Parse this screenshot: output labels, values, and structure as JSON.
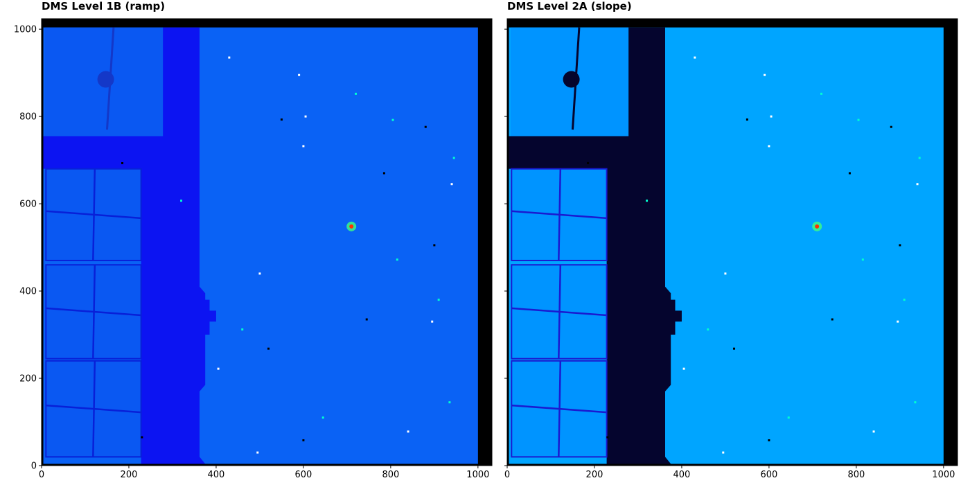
{
  "chart_data": [
    {
      "type": "heatmap",
      "title": "DMS Level 1B (ramp)",
      "xlim": [
        0,
        1032
      ],
      "ylim": [
        0,
        1024
      ],
      "xticks": [
        "0",
        "200",
        "400",
        "600",
        "800",
        "1000"
      ],
      "yticks": [
        "0",
        "200",
        "400",
        "600",
        "800",
        "1000"
      ],
      "show_y_tick_labels": true,
      "colormap": "jet",
      "colors": {
        "background": "#0a62f5",
        "dark_region": "#0c14f2",
        "window": "#0a58f2",
        "border": "#000000",
        "grid_lines": "#0820d8"
      }
    },
    {
      "type": "heatmap",
      "title": "DMS Level 2A (slope)",
      "xlim": [
        0,
        1032
      ],
      "ylim": [
        0,
        1024
      ],
      "xticks": [
        "0",
        "200",
        "400",
        "600",
        "800",
        "1000"
      ],
      "yticks": [
        "0",
        "200",
        "400",
        "600",
        "800",
        "1000"
      ],
      "show_y_tick_labels": false,
      "colormap": "jet",
      "colors": {
        "background": "#00a5ff",
        "dark_region": "#05052e",
        "window": "#0094ff",
        "border": "#000000",
        "grid_lines": "#1a1ad0"
      }
    }
  ]
}
